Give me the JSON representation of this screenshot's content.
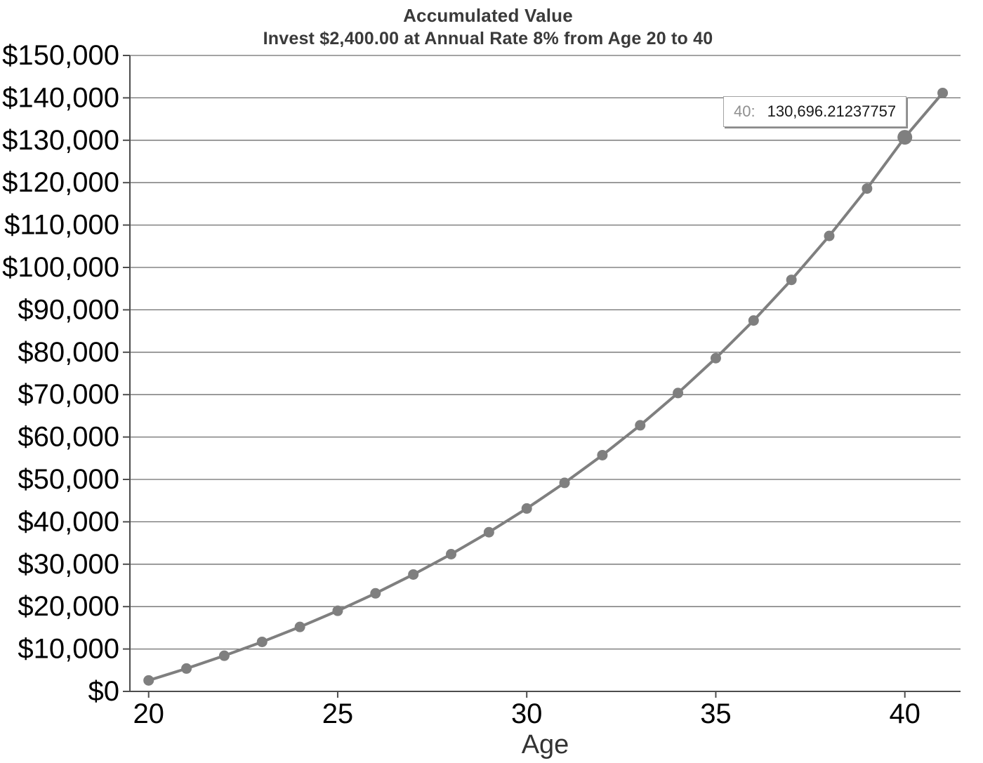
{
  "tooltip": {
    "label": "40:",
    "value": "130,696.21237757"
  },
  "chart_data": {
    "type": "line",
    "title": "Accumulated Value",
    "subtitle": "Invest $2,400.00 at Annual Rate 8% from Age 20 to 40",
    "xlabel": "Age",
    "ylabel": "",
    "x": [
      20,
      21,
      22,
      23,
      24,
      25,
      26,
      27,
      28,
      29,
      30,
      31,
      32,
      33,
      34,
      35,
      36,
      37,
      38,
      39,
      40,
      41
    ],
    "values": [
      2592,
      5391.36,
      8414.67,
      11679.84,
      15206.23,
      19014.73,
      23127.91,
      27570.14,
      32367.75,
      37549.17,
      43145.1,
      49188.71,
      55715.81,
      62765.07,
      70378.28,
      78600.54,
      87480.58,
      97071.03,
      107428.71,
      118615.01,
      130696.21237757,
      141151.91
    ],
    "x_ticks": [
      20,
      25,
      30,
      35,
      40
    ],
    "y_ticks": [
      0,
      10000,
      20000,
      30000,
      40000,
      50000,
      60000,
      70000,
      80000,
      90000,
      100000,
      110000,
      120000,
      130000,
      140000,
      150000
    ],
    "y_tick_prefix": "$",
    "ylim": [
      0,
      150000
    ],
    "xlim": [
      19.5,
      41.5
    ],
    "grid": "horizontal",
    "legend_position": "none",
    "highlighted_point": {
      "x": 40,
      "value": 130696.21237757
    },
    "colors": {
      "line": "#7f7f7f",
      "marker": "#7f7f7f",
      "gridline": "#6e6e6e",
      "axis": "#4d4d4d",
      "tick_label": "#000000",
      "title": "#3a3a3a"
    }
  }
}
